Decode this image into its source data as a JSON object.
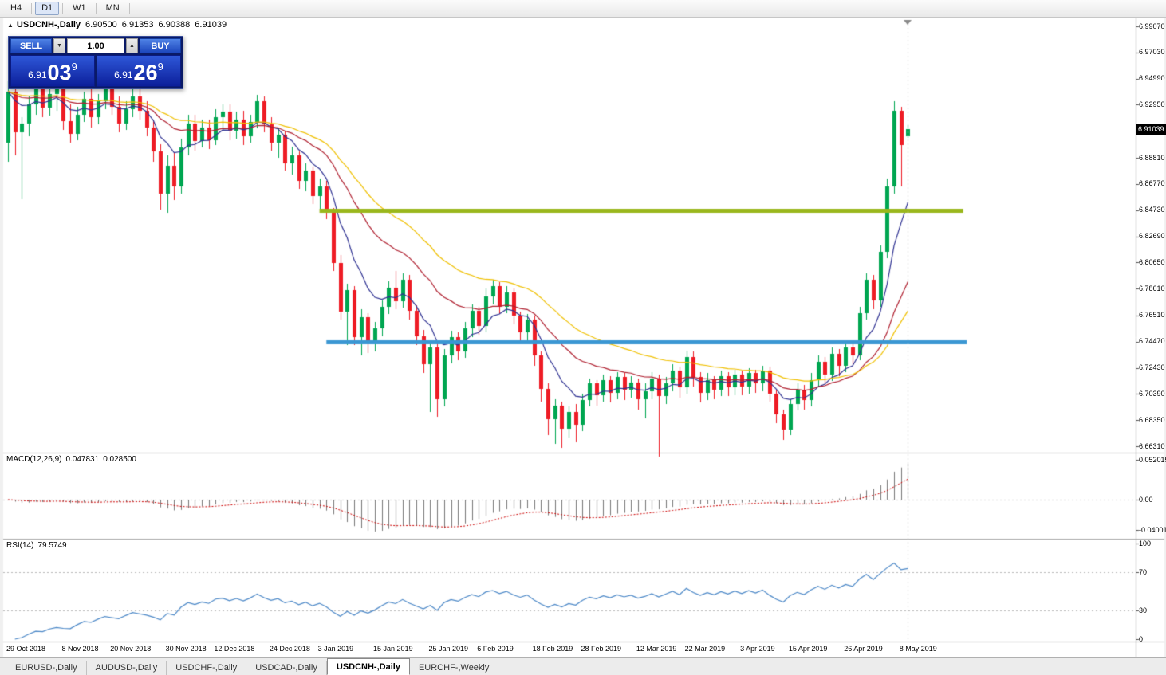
{
  "toolbar": {
    "timeframes": [
      "H4",
      "D1",
      "W1",
      "MN"
    ],
    "active": "D1"
  },
  "chart": {
    "icon": "▲",
    "symbol": "USDCNH-,Daily",
    "ohlc": {
      "open": "6.90500",
      "high": "6.91353",
      "low": "6.90388",
      "close": "6.91039"
    },
    "current_price": "6.91039"
  },
  "trade_panel": {
    "sell_label": "SELL",
    "buy_label": "BUY",
    "volume": "1.00",
    "volume_down_icon": "▼",
    "volume_up_icon": "▲",
    "sell_price": {
      "prefix": "6.91",
      "big": "03",
      "sup": "9"
    },
    "buy_price": {
      "prefix": "6.91",
      "big": "26",
      "sup": "9"
    }
  },
  "price_axis": {
    "max_at_top": 6.99754,
    "min_at_bottom": 6.65814,
    "ticks": [
      "6.99070",
      "6.97030",
      "6.94990",
      "6.92950",
      "6.88810",
      "6.86770",
      "6.84730",
      "6.82690",
      "6.80650",
      "6.78610",
      "6.76510",
      "6.74470",
      "6.72430",
      "6.70390",
      "6.68350",
      "6.66310"
    ],
    "badge": {
      "label": "6.91039",
      "value": 6.91039
    }
  },
  "macd_panel": {
    "title": "MACD(12,26,9)",
    "value1": "0.047831",
    "value2": "0.028500",
    "axis": [
      {
        "v": 0.052015,
        "label": "0.052015"
      },
      {
        "v": 0,
        "label": "0.00"
      },
      {
        "v": -0.04001,
        "label": "-0.04001"
      }
    ]
  },
  "rsi_panel": {
    "title": "RSI(14)",
    "value": "79.5749",
    "axis": [
      {
        "v": 100,
        "label": "100"
      },
      {
        "v": 70,
        "label": "70"
      },
      {
        "v": 30,
        "label": "30"
      },
      {
        "v": 0,
        "label": "0"
      }
    ],
    "levels": [
      70,
      30
    ]
  },
  "date_axis": [
    {
      "label": "29 Oct 2018",
      "bar": 0
    },
    {
      "label": "8 Nov 2018",
      "bar": 8
    },
    {
      "label": "20 Nov 2018",
      "bar": 15
    },
    {
      "label": "30 Nov 2018",
      "bar": 23
    },
    {
      "label": "12 Dec 2018",
      "bar": 30
    },
    {
      "label": "24 Dec 2018",
      "bar": 38
    },
    {
      "label": "3 Jan 2019",
      "bar": 45
    },
    {
      "label": "15 Jan 2019",
      "bar": 53
    },
    {
      "label": "25 Jan 2019",
      "bar": 61
    },
    {
      "label": "6 Feb 2019",
      "bar": 68
    },
    {
      "label": "18 Feb 2019",
      "bar": 76
    },
    {
      "label": "28 Feb 2019",
      "bar": 83
    },
    {
      "label": "12 Mar 2019",
      "bar": 91
    },
    {
      "label": "22 Mar 2019",
      "bar": 98
    },
    {
      "label": "3 Apr 2019",
      "bar": 106
    },
    {
      "label": "15 Apr 2019",
      "bar": 113
    },
    {
      "label": "26 Apr 2019",
      "bar": 121
    },
    {
      "label": "8 May 2019",
      "bar": 129
    }
  ],
  "tabs": [
    "EURUSD-,Daily",
    "AUDUSD-,Daily",
    "USDCHF-,Daily",
    "USDCAD-,Daily",
    "USDCNH-,Daily",
    "EURCHF-,Weekly"
  ],
  "active_tab": "USDCNH-,Daily",
  "colors": {
    "up": "#00a651",
    "down": "#ee1c25",
    "ma_fast": "#2e3192",
    "ma_mid": "#b02030",
    "ma_slow": "#f0c000",
    "level_green": "#9ab71c",
    "level_blue": "#3b97d3",
    "macd_hist": "#777777",
    "macd_signal": "#cc0000",
    "rsi_line": "#4a87c7",
    "badge_bg": "#000000"
  },
  "chart_data": {
    "type": "candlestick",
    "symbol": "USDCNH",
    "timeframe": "Daily",
    "title": "USDCNH-,Daily",
    "y_range": [
      6.6631,
      6.9907
    ],
    "candles": [
      [
        6.9,
        6.948,
        6.885,
        6.94
      ],
      [
        6.94,
        6.945,
        6.89,
        6.908
      ],
      [
        6.908,
        6.92,
        6.856,
        6.915
      ],
      [
        6.915,
        6.936,
        6.905,
        6.93
      ],
      [
        6.93,
        6.948,
        6.922,
        6.942
      ],
      [
        6.942,
        6.946,
        6.92,
        6.927
      ],
      [
        6.927,
        6.944,
        6.921,
        6.938
      ],
      [
        6.938,
        6.948,
        6.925,
        6.944
      ],
      [
        6.944,
        6.947,
        6.91,
        6.917
      ],
      [
        6.917,
        6.93,
        6.9,
        6.907
      ],
      [
        6.907,
        6.928,
        6.902,
        6.922
      ],
      [
        6.922,
        6.94,
        6.916,
        6.934
      ],
      [
        6.934,
        6.945,
        6.912,
        6.92
      ],
      [
        6.92,
        6.938,
        6.914,
        6.932
      ],
      [
        6.932,
        6.948,
        6.926,
        6.942
      ],
      [
        6.942,
        6.946,
        6.922,
        6.928
      ],
      [
        6.928,
        6.936,
        6.908,
        6.915
      ],
      [
        6.915,
        6.932,
        6.91,
        6.926
      ],
      [
        6.926,
        6.942,
        6.92,
        6.936
      ],
      [
        6.936,
        6.944,
        6.918,
        6.925
      ],
      [
        6.925,
        6.932,
        6.905,
        6.912
      ],
      [
        6.912,
        6.918,
        6.885,
        6.893
      ],
      [
        6.893,
        6.899,
        6.848,
        6.86
      ],
      [
        6.86,
        6.89,
        6.845,
        6.882
      ],
      [
        6.882,
        6.892,
        6.855,
        6.866
      ],
      [
        6.866,
        6.903,
        6.86,
        6.896
      ],
      [
        6.896,
        6.922,
        6.89,
        6.915
      ],
      [
        6.915,
        6.922,
        6.894,
        6.901
      ],
      [
        6.901,
        6.918,
        6.896,
        6.912
      ],
      [
        6.912,
        6.918,
        6.895,
        6.902
      ],
      [
        6.902,
        6.926,
        6.898,
        6.92
      ],
      [
        6.92,
        6.93,
        6.91,
        6.924
      ],
      [
        6.924,
        6.93,
        6.902,
        6.909
      ],
      [
        6.909,
        6.924,
        6.903,
        6.918
      ],
      [
        6.918,
        6.925,
        6.898,
        6.905
      ],
      [
        6.905,
        6.922,
        6.9,
        6.916
      ],
      [
        6.916,
        6.937,
        6.911,
        6.932
      ],
      [
        6.932,
        6.936,
        6.908,
        6.914
      ],
      [
        6.914,
        6.92,
        6.894,
        6.9
      ],
      [
        6.9,
        6.912,
        6.888,
        6.906
      ],
      [
        6.906,
        6.909,
        6.878,
        6.884
      ],
      [
        6.884,
        6.897,
        6.875,
        6.89
      ],
      [
        6.89,
        6.893,
        6.864,
        6.87
      ],
      [
        6.87,
        6.884,
        6.862,
        6.878
      ],
      [
        6.878,
        6.881,
        6.852,
        6.858
      ],
      [
        6.858,
        6.872,
        6.848,
        6.866
      ],
      [
        6.866,
        6.87,
        6.84,
        6.845
      ],
      [
        6.845,
        6.849,
        6.8,
        6.806
      ],
      [
        6.806,
        6.812,
        6.762,
        6.768
      ],
      [
        6.768,
        6.79,
        6.742,
        6.785
      ],
      [
        6.785,
        6.788,
        6.742,
        6.748
      ],
      [
        6.748,
        6.77,
        6.734,
        6.764
      ],
      [
        6.764,
        6.767,
        6.736,
        6.743
      ],
      [
        6.743,
        6.76,
        6.737,
        6.755
      ],
      [
        6.755,
        6.777,
        6.749,
        6.772
      ],
      [
        6.772,
        6.792,
        6.766,
        6.787
      ],
      [
        6.787,
        6.8,
        6.77,
        6.776
      ],
      [
        6.776,
        6.798,
        6.771,
        6.793
      ],
      [
        6.793,
        6.797,
        6.762,
        6.769
      ],
      [
        6.769,
        6.773,
        6.742,
        6.749
      ],
      [
        6.749,
        6.754,
        6.72,
        6.727
      ],
      [
        6.727,
        6.744,
        6.69,
        6.74
      ],
      [
        6.74,
        6.743,
        6.686,
        6.7
      ],
      [
        6.7,
        6.739,
        6.694,
        6.734
      ],
      [
        6.734,
        6.753,
        6.728,
        6.748
      ],
      [
        6.748,
        6.752,
        6.73,
        6.737
      ],
      [
        6.737,
        6.76,
        6.732,
        6.755
      ],
      [
        6.755,
        6.774,
        6.748,
        6.769
      ],
      [
        6.769,
        6.772,
        6.75,
        6.757
      ],
      [
        6.757,
        6.786,
        6.752,
        6.78
      ],
      [
        6.78,
        6.793,
        6.774,
        6.788
      ],
      [
        6.788,
        6.791,
        6.766,
        6.772
      ],
      [
        6.772,
        6.788,
        6.767,
        6.783
      ],
      [
        6.783,
        6.786,
        6.758,
        6.765
      ],
      [
        6.765,
        6.768,
        6.744,
        6.752
      ],
      [
        6.752,
        6.766,
        6.746,
        6.762
      ],
      [
        6.762,
        6.765,
        6.726,
        6.734
      ],
      [
        6.734,
        6.737,
        6.698,
        6.708
      ],
      [
        6.708,
        6.712,
        6.672,
        6.684
      ],
      [
        6.684,
        6.7,
        6.665,
        6.695
      ],
      [
        6.695,
        6.698,
        6.662,
        6.677
      ],
      [
        6.677,
        6.694,
        6.67,
        6.69
      ],
      [
        6.69,
        6.696,
        6.666,
        6.68
      ],
      [
        6.68,
        6.704,
        6.675,
        6.699
      ],
      [
        6.699,
        6.716,
        6.694,
        6.712
      ],
      [
        6.712,
        6.715,
        6.695,
        6.703
      ],
      [
        6.703,
        6.719,
        6.698,
        6.715
      ],
      [
        6.715,
        6.718,
        6.697,
        6.705
      ],
      [
        6.705,
        6.721,
        6.7,
        6.717
      ],
      [
        6.717,
        6.72,
        6.699,
        6.707
      ],
      [
        6.707,
        6.718,
        6.701,
        6.713
      ],
      [
        6.713,
        6.716,
        6.692,
        6.7
      ],
      [
        6.7,
        6.712,
        6.685,
        6.706
      ],
      [
        6.706,
        6.721,
        6.7,
        6.716
      ],
      [
        6.716,
        6.719,
        6.655,
        6.702
      ],
      [
        6.702,
        6.717,
        6.696,
        6.712
      ],
      [
        6.712,
        6.727,
        6.706,
        6.722
      ],
      [
        6.722,
        6.725,
        6.701,
        6.709
      ],
      [
        6.709,
        6.738,
        6.704,
        6.733
      ],
      [
        6.733,
        6.737,
        6.71,
        6.717
      ],
      [
        6.717,
        6.721,
        6.697,
        6.705
      ],
      [
        6.705,
        6.72,
        6.699,
        6.715
      ],
      [
        6.715,
        6.718,
        6.7,
        6.707
      ],
      [
        6.707,
        6.722,
        6.702,
        6.718
      ],
      [
        6.718,
        6.721,
        6.702,
        6.709
      ],
      [
        6.709,
        6.723,
        6.703,
        6.719
      ],
      [
        6.719,
        6.722,
        6.703,
        6.71
      ],
      [
        6.71,
        6.724,
        6.704,
        6.72
      ],
      [
        6.72,
        6.723,
        6.705,
        6.712
      ],
      [
        6.712,
        6.726,
        6.706,
        6.722
      ],
      [
        6.722,
        6.725,
        6.698,
        6.704
      ],
      [
        6.704,
        6.708,
        6.681,
        6.688
      ],
      [
        6.688,
        6.692,
        6.668,
        6.676
      ],
      [
        6.676,
        6.7,
        6.672,
        6.696
      ],
      [
        6.696,
        6.712,
        6.691,
        6.707
      ],
      [
        6.707,
        6.711,
        6.692,
        6.699
      ],
      [
        6.699,
        6.72,
        6.694,
        6.715
      ],
      [
        6.715,
        6.734,
        6.71,
        6.729
      ],
      [
        6.729,
        6.733,
        6.712,
        6.719
      ],
      [
        6.719,
        6.74,
        6.714,
        6.735
      ],
      [
        6.735,
        6.739,
        6.718,
        6.726
      ],
      [
        6.726,
        6.744,
        6.721,
        6.74
      ],
      [
        6.74,
        6.746,
        6.727,
        6.734
      ],
      [
        6.734,
        6.772,
        6.73,
        6.767
      ],
      [
        6.767,
        6.798,
        6.762,
        6.793
      ],
      [
        6.793,
        6.797,
        6.77,
        6.777
      ],
      [
        6.777,
        6.82,
        6.772,
        6.815
      ],
      [
        6.815,
        6.872,
        6.81,
        6.866
      ],
      [
        6.866,
        6.932,
        6.86,
        6.925
      ],
      [
        6.925,
        6.928,
        6.866,
        6.898
      ],
      [
        6.905,
        6.9135,
        6.9039,
        6.9104
      ]
    ],
    "moving_averages": [
      {
        "period": 8,
        "color_key": "ma_fast"
      },
      {
        "period": 21,
        "color_key": "ma_mid"
      },
      {
        "period": 34,
        "color_key": "ma_slow"
      }
    ],
    "horizontal_levels": [
      {
        "price": 6.8473,
        "color_key": "level_green",
        "from_bar": 45,
        "to_bar": 138
      },
      {
        "price": 6.7447,
        "color_key": "level_blue",
        "from_bar": 46,
        "to_bar": 138.5
      }
    ],
    "macd": {
      "fast": 12,
      "slow": 26,
      "signal": 9
    },
    "rsi": {
      "period": 14
    },
    "scroll_marker_bar": 130
  }
}
